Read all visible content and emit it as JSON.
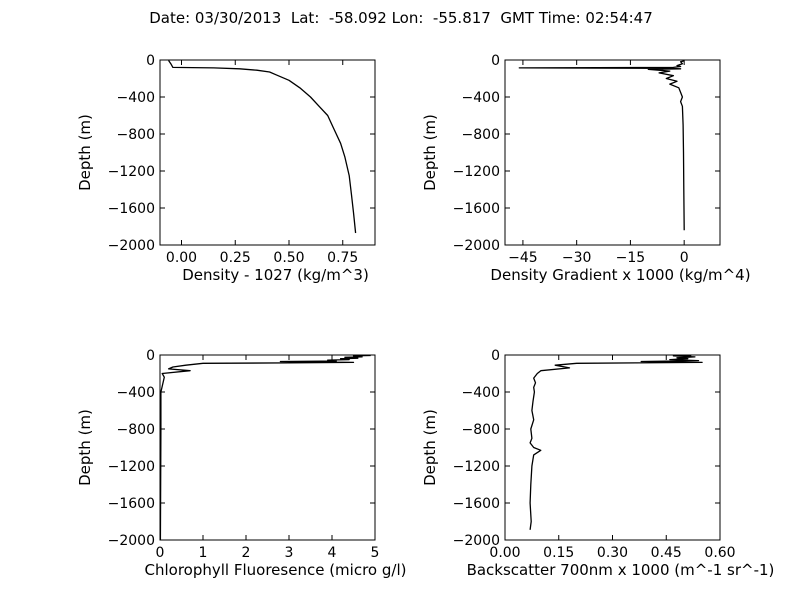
{
  "figure_title": "Date: 03/30/2013  Lat:  -58.092 Lon:  -55.817  GMT Time: 02:54:47",
  "chart_data": [
    {
      "type": "line",
      "id": "density",
      "xlabel": "Density - 1027 (kg/m^3)",
      "ylabel": "Depth (m)",
      "xlim": [
        -0.1,
        0.9
      ],
      "ylim": [
        -2000,
        0
      ],
      "xticks": [
        0.0,
        0.25,
        0.5,
        0.75
      ],
      "xtick_labels": [
        "0.00",
        "0.25",
        "0.50",
        "0.75"
      ],
      "yticks": [
        0,
        -400,
        -800,
        -1200,
        -1600,
        -2000
      ],
      "ytick_labels": [
        "0",
        "−400",
        "−800",
        "−1200",
        "−1600",
        "−2000"
      ],
      "grid": false,
      "series": [
        {
          "x": [
            -0.06,
            -0.05,
            -0.04,
            0.05,
            0.15,
            0.27,
            0.35,
            0.41,
            0.44,
            0.5,
            0.55,
            0.6,
            0.64,
            0.68,
            0.71,
            0.74,
            0.76,
            0.78,
            0.79,
            0.8,
            0.81
          ],
          "y": [
            -5,
            -40,
            -80,
            -82,
            -85,
            -95,
            -110,
            -130,
            -160,
            -220,
            -300,
            -400,
            -500,
            -600,
            -750,
            -900,
            -1050,
            -1250,
            -1450,
            -1650,
            -1870
          ]
        }
      ]
    },
    {
      "type": "line",
      "id": "gradient",
      "xlabel": "Density Gradient x 1000 (kg/m^4)",
      "ylabel": "Depth (m)",
      "xlim": [
        -50,
        10
      ],
      "ylim": [
        -2000,
        0
      ],
      "xticks": [
        -45,
        -30,
        -15,
        0
      ],
      "xtick_labels": [
        "−45",
        "−30",
        "−15",
        "0"
      ],
      "yticks": [
        0,
        -400,
        -800,
        -1200,
        -1600,
        -2000
      ],
      "ytick_labels": [
        "0",
        "−400",
        "−800",
        "−1200",
        "−1600",
        "−2000"
      ],
      "grid": false,
      "series": [
        {
          "x": [
            0,
            -1,
            -0.5,
            -2,
            -1,
            -3,
            -46,
            -5,
            -1,
            -10,
            -4,
            -7,
            -3,
            -5,
            -2,
            -4,
            -1.5,
            -1,
            -0.5,
            -1,
            -0.5,
            -0.3,
            -0.2,
            -0.1,
            0
          ],
          "y": [
            -10,
            -20,
            -40,
            -60,
            -70,
            -80,
            -85,
            -90,
            -95,
            -100,
            -120,
            -140,
            -170,
            -200,
            -230,
            -260,
            -300,
            -350,
            -400,
            -450,
            -500,
            -700,
            -1000,
            -1400,
            -1840
          ]
        }
      ]
    },
    {
      "type": "line",
      "id": "chlorophyll",
      "xlabel": "Chlorophyll Fluoresence (micro g/l)",
      "ylabel": "Depth (m)",
      "xlim": [
        0,
        5
      ],
      "ylim": [
        -2000,
        0
      ],
      "xticks": [
        0,
        1,
        2,
        3,
        4,
        5
      ],
      "xtick_labels": [
        "0",
        "1",
        "2",
        "3",
        "4",
        "5"
      ],
      "grid": false,
      "yticks": [
        0,
        -400,
        -800,
        -1200,
        -1600,
        -2000
      ],
      "ytick_labels": [
        "0",
        "−400",
        "−800",
        "−1200",
        "−1600",
        "−2000"
      ],
      "series": [
        {
          "x": [
            4.9,
            4.5,
            4.7,
            4.3,
            4.6,
            4.2,
            4.4,
            3.9,
            4.1,
            2.8,
            4.5,
            3.0,
            1.0,
            0.6,
            0.3,
            0.2,
            0.7,
            0.05,
            0.1,
            0.02,
            0.02,
            0.01
          ],
          "y": [
            -5,
            -10,
            -20,
            -25,
            -35,
            -40,
            -50,
            -55,
            -65,
            -70,
            -80,
            -85,
            -90,
            -110,
            -130,
            -150,
            -170,
            -200,
            -240,
            -400,
            -800,
            -2000
          ]
        }
      ]
    },
    {
      "type": "line",
      "id": "backscatter",
      "xlabel": "Backscatter 700nm x 1000 (m^-1 sr^-1)",
      "ylabel": "Depth (m)",
      "xlim": [
        0,
        0.6
      ],
      "ylim": [
        -2000,
        0
      ],
      "xticks": [
        0.0,
        0.15,
        0.3,
        0.45,
        0.6
      ],
      "xtick_labels": [
        "0.00",
        "0.15",
        "0.30",
        "0.45",
        "0.60"
      ],
      "yticks": [
        0,
        -400,
        -800,
        -1200,
        -1600,
        -2000
      ],
      "ytick_labels": [
        "0",
        "−400",
        "−800",
        "−1200",
        "−1600",
        "−2000"
      ],
      "grid": false,
      "series": [
        {
          "x": [
            0.52,
            0.47,
            0.53,
            0.48,
            0.51,
            0.46,
            0.54,
            0.38,
            0.55,
            0.2,
            0.14,
            0.18,
            0.1,
            0.09,
            0.08,
            0.085,
            0.08,
            0.082,
            0.078,
            0.075,
            0.08,
            0.072,
            0.075,
            0.07,
            0.08,
            0.1,
            0.08,
            0.075,
            0.072,
            0.07,
            0.073,
            0.07
          ],
          "y": [
            -5,
            -10,
            -20,
            -30,
            -40,
            -50,
            -60,
            -70,
            -80,
            -90,
            -110,
            -140,
            -170,
            -200,
            -250,
            -300,
            -350,
            -400,
            -500,
            -600,
            -700,
            -800,
            -900,
            -950,
            -1000,
            -1030,
            -1080,
            -1200,
            -1400,
            -1600,
            -1800,
            -1890
          ]
        }
      ]
    }
  ]
}
